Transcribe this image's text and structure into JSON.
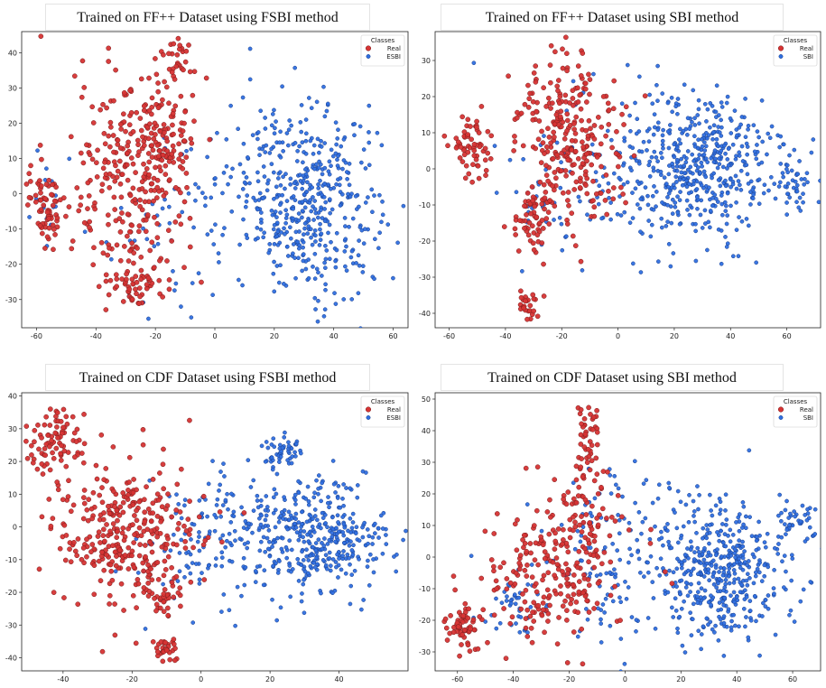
{
  "chart_data": [
    {
      "type": "scatter",
      "title": "Trained on FF++ Dataset using FSBI method",
      "xlim": [
        -65,
        65
      ],
      "ylim": [
        -38,
        46
      ],
      "xticks": [
        -60,
        -40,
        -20,
        0,
        20,
        40,
        60
      ],
      "yticks": [
        -30,
        -20,
        -10,
        0,
        10,
        20,
        30,
        40
      ],
      "legend": {
        "title": "Classes",
        "position": "top-right"
      },
      "series": [
        {
          "name": "Real",
          "color": "#d63434",
          "edge": "#7a1d1d",
          "clusters": [
            {
              "cx": -57,
              "cy": -3,
              "sx": 3,
              "sy": 6,
              "n": 70
            },
            {
              "cx": -27,
              "cy": 5,
              "sx": 10,
              "sy": 15,
              "n": 280
            },
            {
              "cx": -15,
              "cy": 15,
              "sx": 5,
              "sy": 7,
              "n": 60
            },
            {
              "cx": -13,
              "cy": 38,
              "sx": 3,
              "sy": 3,
              "n": 30
            },
            {
              "cx": -27,
              "cy": -25,
              "sx": 5,
              "sy": 4,
              "n": 60
            }
          ]
        },
        {
          "name": "ESBI",
          "color": "#2f6fe0",
          "edge": "#1b3f8a",
          "clusters": [
            {
              "cx": 33,
              "cy": -3,
              "sx": 11,
              "sy": 13,
              "n": 420
            },
            {
              "cx": 10,
              "cy": 5,
              "sx": 10,
              "sy": 15,
              "n": 80
            },
            {
              "cx": -20,
              "cy": -10,
              "sx": 10,
              "sy": 15,
              "n": 40
            },
            {
              "cx": -57,
              "cy": 0,
              "sx": 4,
              "sy": 6,
              "n": 15
            }
          ]
        }
      ]
    },
    {
      "type": "scatter",
      "title": "Trained on FF++ Dataset using SBI method",
      "xlim": [
        -65,
        72
      ],
      "ylim": [
        -44,
        38
      ],
      "xticks": [
        -60,
        -40,
        -20,
        0,
        20,
        40,
        60
      ],
      "yticks": [
        -40,
        -30,
        -20,
        -10,
        0,
        10,
        20,
        30
      ],
      "legend": {
        "title": "Classes",
        "position": "top-right"
      },
      "series": [
        {
          "name": "Real",
          "color": "#d63434",
          "edge": "#7a1d1d",
          "clusters": [
            {
              "cx": -52,
              "cy": 5,
              "sx": 4,
              "sy": 5,
              "n": 60
            },
            {
              "cx": -18,
              "cy": 8,
              "sx": 10,
              "sy": 12,
              "n": 280
            },
            {
              "cx": -30,
              "cy": -14,
              "sx": 4,
              "sy": 4,
              "n": 50
            },
            {
              "cx": -32,
              "cy": -38,
              "sx": 2,
              "sy": 2,
              "n": 25
            }
          ]
        },
        {
          "name": "SBI",
          "color": "#2f6fe0",
          "edge": "#1b3f8a",
          "clusters": [
            {
              "cx": 30,
              "cy": 0,
              "sx": 12,
              "sy": 10,
              "n": 430
            },
            {
              "cx": 62,
              "cy": -5,
              "sx": 4,
              "sy": 5,
              "n": 50
            },
            {
              "cx": 5,
              "cy": 0,
              "sx": 10,
              "sy": 12,
              "n": 80
            },
            {
              "cx": -25,
              "cy": -5,
              "sx": 10,
              "sy": 12,
              "n": 50
            }
          ]
        }
      ]
    },
    {
      "type": "scatter",
      "title": "Trained on CDF Dataset using FSBI method",
      "xlim": [
        -52,
        60
      ],
      "ylim": [
        -44,
        41
      ],
      "xticks": [
        -40,
        -20,
        0,
        20,
        40
      ],
      "yticks": [
        -40,
        -30,
        -20,
        -10,
        0,
        10,
        20,
        30,
        40
      ],
      "legend": {
        "title": "Classes",
        "position": "top-right"
      },
      "series": [
        {
          "name": "Real",
          "color": "#d63434",
          "edge": "#7a1d1d",
          "clusters": [
            {
              "cx": -42,
              "cy": 27,
              "sx": 4,
              "sy": 5,
              "n": 80
            },
            {
              "cx": -22,
              "cy": -2,
              "sx": 10,
              "sy": 11,
              "n": 330
            },
            {
              "cx": -10,
              "cy": -38,
              "sx": 2,
              "sy": 2,
              "n": 30
            },
            {
              "cx": -10,
              "cy": -22,
              "sx": 3,
              "sy": 3,
              "n": 25
            }
          ]
        },
        {
          "name": "ESBI",
          "color": "#2f6fe0",
          "edge": "#1b3f8a",
          "clusters": [
            {
              "cx": 32,
              "cy": -4,
              "sx": 12,
              "sy": 9,
              "n": 430
            },
            {
              "cx": 23,
              "cy": 23,
              "sx": 3,
              "sy": 3,
              "n": 50
            },
            {
              "cx": 0,
              "cy": -5,
              "sx": 10,
              "sy": 12,
              "n": 100
            }
          ]
        }
      ]
    },
    {
      "type": "scatter",
      "title": "Trained on CDF Dataset using SBI method",
      "xlim": [
        -68,
        70
      ],
      "ylim": [
        -36,
        52
      ],
      "xticks": [
        -60,
        -40,
        -20,
        0,
        20,
        40,
        60
      ],
      "yticks": [
        -30,
        -20,
        -10,
        0,
        10,
        20,
        30,
        40,
        50
      ],
      "legend": {
        "title": "Classes",
        "position": "top-right"
      },
      "series": [
        {
          "name": "Real",
          "color": "#d63434",
          "edge": "#7a1d1d",
          "clusters": [
            {
              "cx": -58,
              "cy": -22,
              "sx": 4,
              "sy": 4,
              "n": 60
            },
            {
              "cx": -25,
              "cy": -5,
              "sx": 13,
              "sy": 11,
              "n": 220
            },
            {
              "cx": -15,
              "cy": 15,
              "sx": 6,
              "sy": 8,
              "n": 60
            },
            {
              "cx": -13,
              "cy": 38,
              "sx": 2,
              "sy": 5,
              "n": 40
            }
          ]
        },
        {
          "name": "SBI",
          "color": "#2f6fe0",
          "edge": "#1b3f8a",
          "clusters": [
            {
              "cx": 35,
              "cy": -5,
              "sx": 12,
              "sy": 11,
              "n": 430
            },
            {
              "cx": 60,
              "cy": 12,
              "sx": 4,
              "sy": 4,
              "n": 40
            },
            {
              "cx": 0,
              "cy": 0,
              "sx": 14,
              "sy": 14,
              "n": 140
            },
            {
              "cx": -40,
              "cy": -15,
              "sx": 8,
              "sy": 6,
              "n": 40
            }
          ]
        }
      ]
    }
  ]
}
